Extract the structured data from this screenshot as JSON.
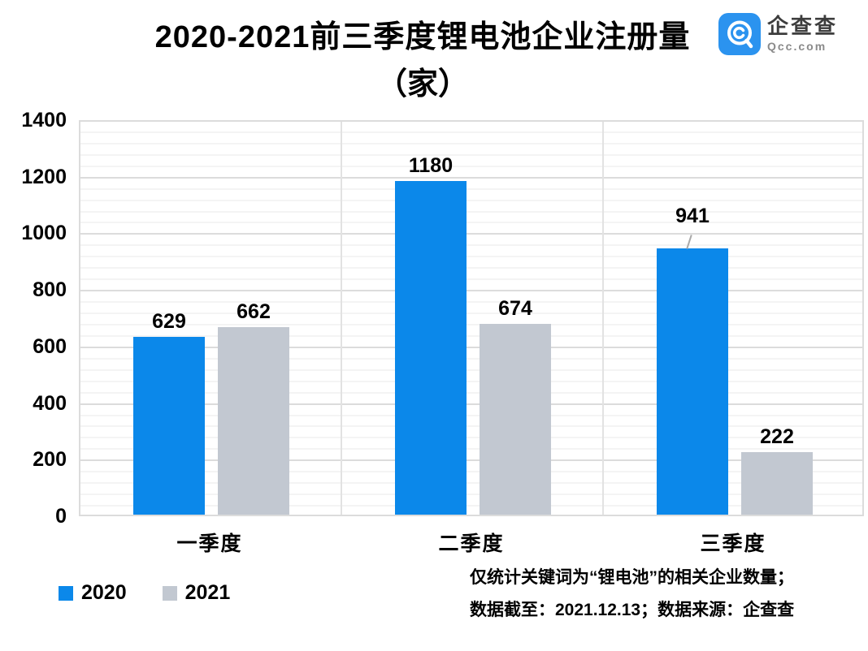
{
  "title": {
    "line1": "2020-2021前三季度锂电池企业注册量",
    "line2": "（家）"
  },
  "logo": {
    "name": "企查查",
    "domain": "Qcc.com",
    "color": "#2b93ef"
  },
  "legend": [
    {
      "label": "2020",
      "color": "#0b88ea"
    },
    {
      "label": "2021",
      "color": "#c2c8d1"
    }
  ],
  "notes": {
    "line1": "仅统计关键词为“锂电池”的相关企业数量；",
    "line2": "数据截至：2021.12.13；数据来源：企查查"
  },
  "chart_data": {
    "type": "bar",
    "title": "2020-2021前三季度锂电池企业注册量（家）",
    "categories": [
      "一季度",
      "二季度",
      "三季度"
    ],
    "series": [
      {
        "name": "2020",
        "color": "#0b88ea",
        "values": [
          629,
          1180,
          941
        ],
        "label_callouts": [
          false,
          false,
          true
        ]
      },
      {
        "name": "2021",
        "color": "#c2c8d1",
        "values": [
          662,
          674,
          222
        ],
        "label_callouts": [
          false,
          false,
          false
        ]
      }
    ],
    "ylabel": "",
    "xlabel": "",
    "ylim": [
      0,
      1400
    ],
    "y_major_ticks": [
      0,
      200,
      400,
      600,
      800,
      1000,
      1200,
      1400
    ],
    "y_minor_step": 40,
    "grid": true,
    "data_labels": true,
    "legend_position": "bottom-left"
  }
}
